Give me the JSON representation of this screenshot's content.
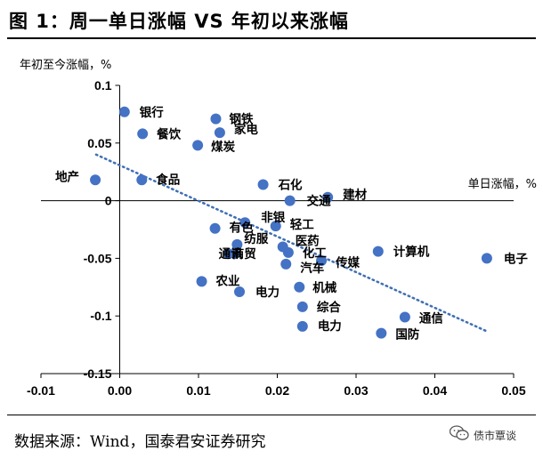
{
  "title": "图 1：周一单日涨幅 VS 年初以来涨幅",
  "source": "数据来源：Wind，国泰君安证券研究",
  "watermark": {
    "text": "债市覃谈",
    "icon": "wechat-icon"
  },
  "chart_data": {
    "type": "scatter",
    "xlabel": "单日涨幅，%",
    "ylabel": "年初至今涨幅，%",
    "xlim": [
      -0.01,
      0.05
    ],
    "ylim": [
      -0.15,
      0.1
    ],
    "xticks": [
      -0.01,
      0.0,
      0.01,
      0.02,
      0.03,
      0.04,
      0.05
    ],
    "xtick_labels": [
      "-0.01",
      "0.00",
      "0.01",
      "0.02",
      "0.03",
      "0.04",
      "0.05"
    ],
    "yticks": [
      -0.15,
      -0.1,
      -0.05,
      0,
      0.05,
      0.1
    ],
    "ytick_labels": [
      "-0.15",
      "-0.1",
      "-0.05",
      "0",
      "0.05",
      "0.1"
    ],
    "grid": false,
    "marker_color": "#4472C4",
    "trendline": {
      "style": "dotted",
      "color": "#3F6FB5",
      "x": [
        -0.003,
        0.0465
      ],
      "y": [
        0.04,
        -0.113
      ]
    },
    "points": [
      {
        "label": "银行",
        "x": 0.0006,
        "y": 0.077
      },
      {
        "label": "钢铁",
        "x": 0.0122,
        "y": 0.071
      },
      {
        "label": "餐饮",
        "x": 0.0029,
        "y": 0.058
      },
      {
        "label": "家电",
        "x": 0.0127,
        "y": 0.059
      },
      {
        "label": "煤炭",
        "x": 0.0099,
        "y": 0.048
      },
      {
        "label": "地产",
        "x": -0.0031,
        "y": 0.018
      },
      {
        "label": "食品",
        "x": 0.0028,
        "y": 0.018
      },
      {
        "label": "石化",
        "x": 0.0182,
        "y": 0.014
      },
      {
        "label": "交通",
        "x": 0.0216,
        "y": 0.0
      },
      {
        "label": "建材",
        "x": 0.0264,
        "y": 0.003
      },
      {
        "label": "非银",
        "x": 0.0159,
        "y": -0.019
      },
      {
        "label": "轻工",
        "x": 0.0198,
        "y": -0.022
      },
      {
        "label": "有色",
        "x": 0.0121,
        "y": -0.024
      },
      {
        "label": "纺服",
        "x": 0.0149,
        "y": -0.038
      },
      {
        "label": "医药",
        "x": 0.0207,
        "y": -0.04
      },
      {
        "label": "计算机",
        "x": 0.0328,
        "y": -0.044
      },
      {
        "label": "电子",
        "x": 0.0466,
        "y": -0.05
      },
      {
        "label": "通讯",
        "x": 0.0138,
        "y": -0.046
      },
      {
        "label": "商贸",
        "x": 0.0146,
        "y": -0.046
      },
      {
        "label": "化工",
        "x": 0.0214,
        "y": -0.045
      },
      {
        "label": "汽车",
        "x": 0.0211,
        "y": -0.055
      },
      {
        "label": "传媒",
        "x": 0.0256,
        "y": -0.052
      },
      {
        "label": "农业",
        "x": 0.0104,
        "y": -0.07
      },
      {
        "label": "电力",
        "x": 0.0152,
        "y": -0.079
      },
      {
        "label": "机械",
        "x": 0.0228,
        "y": -0.075
      },
      {
        "label": "综合",
        "x": 0.0232,
        "y": -0.092
      },
      {
        "label": "通信",
        "x": 0.0362,
        "y": -0.101
      },
      {
        "label": "电力",
        "x": 0.0232,
        "y": -0.109
      },
      {
        "label": "国防",
        "x": 0.0332,
        "y": -0.115
      }
    ]
  }
}
